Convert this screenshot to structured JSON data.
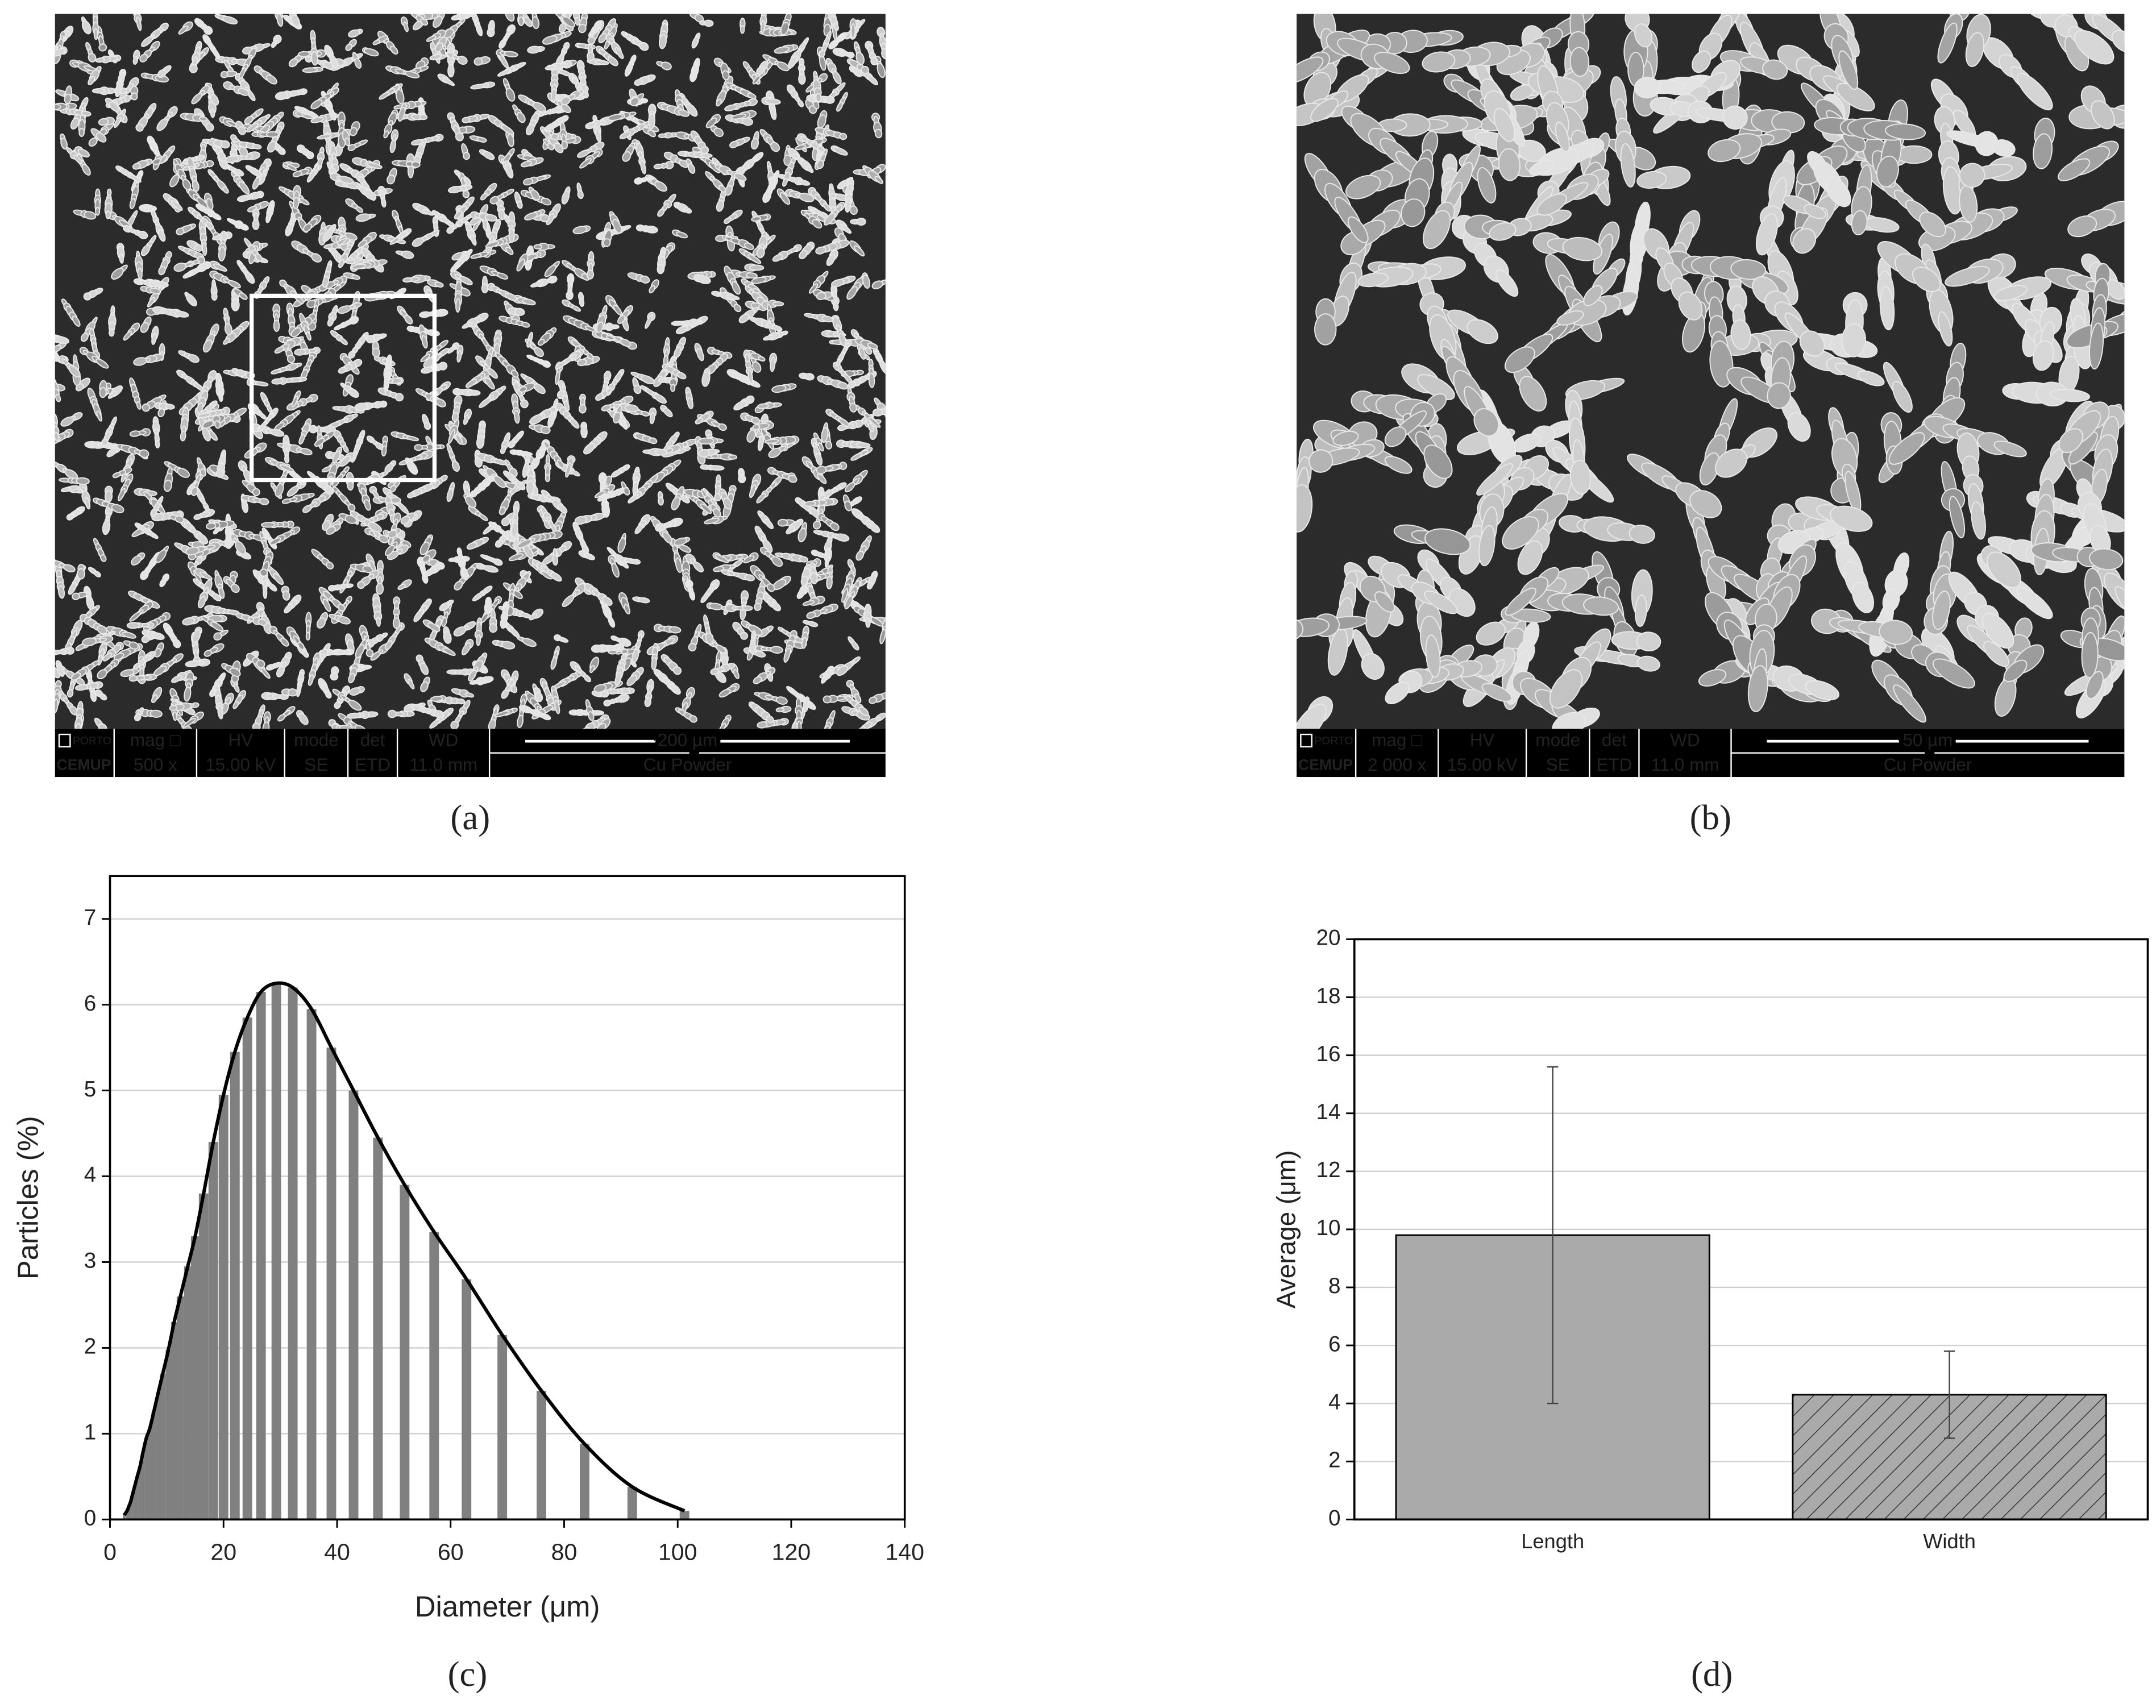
{
  "panels": [
    {
      "label": "(a)",
      "info": {
        "logo": [
          "PORTO",
          "CEMUP"
        ],
        "cells": [
          [
            "mag □",
            "500 x"
          ],
          [
            "HV",
            "15.00 kV"
          ],
          [
            "mode",
            "SE"
          ],
          [
            "det",
            "ETD"
          ],
          [
            "WD",
            "11.0 mm"
          ]
        ],
        "scale": "200 µm",
        "sample": "Cu Powder"
      }
    },
    {
      "label": "(b)",
      "info": {
        "logo": [
          "PORTO",
          "CEMUP"
        ],
        "cells": [
          [
            "mag □",
            "2 000 x"
          ],
          [
            "HV",
            "15.00 kV"
          ],
          [
            "mode",
            "SE"
          ],
          [
            "det",
            "ETD"
          ],
          [
            "WD",
            "11.0 mm"
          ]
        ],
        "scale": "50 µm",
        "sample": "Cu Powder"
      }
    },
    {
      "label": "(c)"
    },
    {
      "label": "(d)"
    }
  ],
  "chart_data": [
    {
      "type": "bar",
      "xlabel": "Diameter (μm)",
      "ylabel": "Particles (%)",
      "x": [
        2.5,
        3.0,
        3.3,
        3.6,
        4.0,
        4.4,
        4.8,
        5.3,
        5.8,
        6.4,
        7.0,
        7.7,
        8.5,
        9.3,
        10.3,
        11.3,
        12.4,
        13.7,
        15.0,
        16.5,
        18.2,
        20.0,
        22.0,
        24.2,
        26.6,
        29.3,
        32.2,
        35.5,
        39.0,
        42.9,
        47.2,
        51.9,
        57.1,
        62.8,
        69.1,
        76.0,
        83.6,
        92.0,
        101.2
      ],
      "values": [
        0.05,
        0.1,
        0.15,
        0.2,
        0.3,
        0.4,
        0.5,
        0.62,
        0.78,
        0.95,
        1.06,
        1.25,
        1.48,
        1.7,
        1.98,
        2.3,
        2.6,
        2.95,
        3.3,
        3.8,
        4.4,
        4.95,
        5.45,
        5.85,
        6.15,
        6.25,
        6.2,
        5.95,
        5.5,
        5.0,
        4.45,
        3.9,
        3.35,
        2.8,
        2.15,
        1.5,
        0.88,
        0.38,
        0.1
      ],
      "color": "#808080",
      "line": true,
      "line_color": "#000000",
      "xlim": [
        0,
        140
      ],
      "xticks": [
        0,
        20,
        40,
        60,
        80,
        100,
        120,
        140
      ],
      "ylim": [
        0,
        7.5
      ],
      "yticks": [
        0,
        1,
        2,
        3,
        4,
        5,
        6,
        7
      ],
      "grid": true
    },
    {
      "type": "bar",
      "ylabel": "Average (μm)",
      "categories": [
        "Length",
        "Width"
      ],
      "values": [
        9.8,
        4.3
      ],
      "errors": [
        5.8,
        1.5
      ],
      "color": "#aaaaaa",
      "hatch": [
        false,
        true
      ],
      "ylim": [
        0,
        20
      ],
      "yticks": [
        0,
        2,
        4,
        6,
        8,
        10,
        12,
        14,
        16,
        18,
        20
      ],
      "grid": true
    }
  ]
}
